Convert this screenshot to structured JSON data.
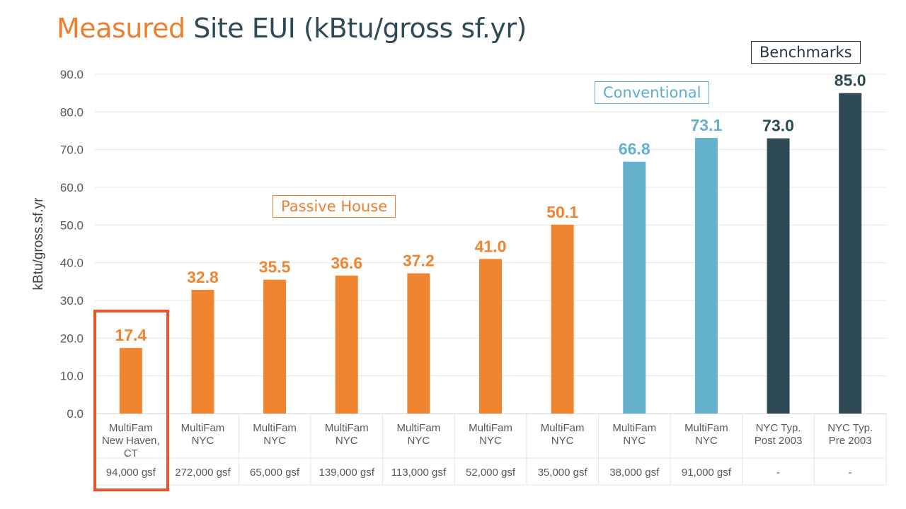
{
  "title": {
    "accent": "Measured",
    "main": " Site EUI (kBtu/gross sf.yr)"
  },
  "annotations": {
    "passive_house": "Passive House",
    "conventional": "Conventional",
    "benchmarks": "Benchmarks"
  },
  "colors": {
    "passive": "#ef8431",
    "conventional": "#64b1ce",
    "benchmark": "#2e4b55",
    "highlight": "#e8552c",
    "grid": "#e4e4e4",
    "axis_text": "#595959"
  },
  "chart_data": {
    "type": "bar",
    "title": "Measured Site EUI (kBtu/gross sf.yr)",
    "ylabel": "kBtu/gross.sf.yr",
    "ylim": [
      0,
      90
    ],
    "yticks": [
      "0.0",
      "10.0",
      "20.0",
      "30.0",
      "40.0",
      "50.0",
      "60.0",
      "70.0",
      "80.0",
      "90.0"
    ],
    "grid": true,
    "categories": [
      {
        "label": [
          "MultiFam",
          "New Haven,",
          "CT"
        ],
        "size": "94,000 gsf",
        "group": "passive"
      },
      {
        "label": [
          "MultiFam",
          "NYC"
        ],
        "size": "272,000 gsf",
        "group": "passive"
      },
      {
        "label": [
          "MultiFam",
          "NYC"
        ],
        "size": "65,000 gsf",
        "group": "passive"
      },
      {
        "label": [
          "MultiFam",
          "NYC"
        ],
        "size": "139,000 gsf",
        "group": "passive"
      },
      {
        "label": [
          "MultiFam",
          "NYC"
        ],
        "size": "113,000 gsf",
        "group": "passive"
      },
      {
        "label": [
          "MultiFam",
          "NYC"
        ],
        "size": "52,000 gsf",
        "group": "passive"
      },
      {
        "label": [
          "MultiFam",
          "NYC"
        ],
        "size": "35,000 gsf",
        "group": "passive"
      },
      {
        "label": [
          "MultiFam",
          "NYC"
        ],
        "size": "38,000 gsf",
        "group": "conventional"
      },
      {
        "label": [
          "MultiFam",
          "NYC"
        ],
        "size": "91,000 gsf",
        "group": "conventional"
      },
      {
        "label": [
          "NYC Typ.",
          "Post 2003"
        ],
        "size": "-",
        "group": "benchmark"
      },
      {
        "label": [
          "NYC Typ.",
          "Pre 2003"
        ],
        "size": "-",
        "group": "benchmark"
      }
    ],
    "values": [
      17.4,
      32.8,
      35.5,
      36.6,
      37.2,
      41.0,
      50.1,
      66.8,
      73.1,
      73.0,
      85.0
    ],
    "value_labels": [
      "17.4",
      "32.8",
      "35.5",
      "36.6",
      "37.2",
      "41.0",
      "50.1",
      "66.8",
      "73.1",
      "73.0",
      "85.0"
    ]
  }
}
